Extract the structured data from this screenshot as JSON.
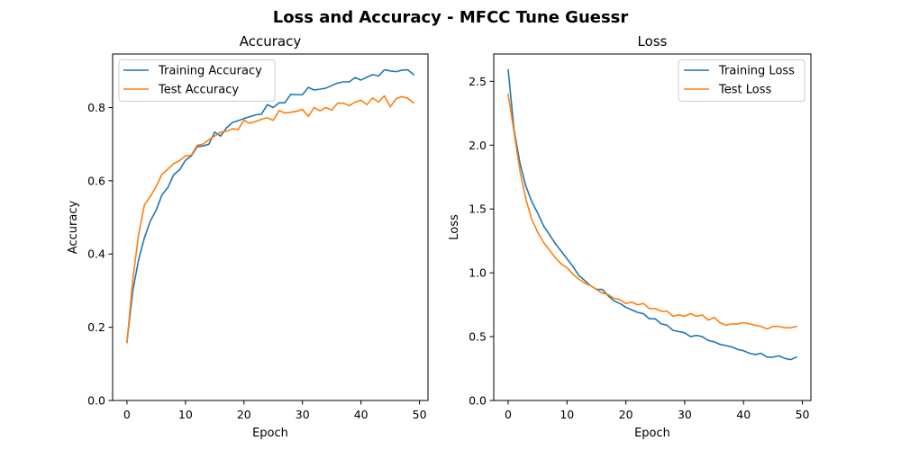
{
  "figure": {
    "title": "Loss and Accuracy - MFCC Tune Guessr",
    "colors": {
      "train": "#1f77b4",
      "test": "#ff7f0e"
    }
  },
  "chart_data": [
    {
      "id": "accuracy",
      "type": "line",
      "title": "Accuracy",
      "xlabel": "Epoch",
      "ylabel": "Accuracy",
      "xlim": [
        -2.45,
        51.45
      ],
      "ylim": [
        0.0,
        0.9462
      ],
      "xticks": [
        0,
        10,
        20,
        30,
        40,
        50
      ],
      "yticks": [
        0.0,
        0.2,
        0.4,
        0.6,
        0.8
      ],
      "ytick_labels": [
        "0.0",
        "0.2",
        "0.4",
        "0.6",
        "0.8"
      ],
      "legend_position": "upper-left",
      "grid": false,
      "x": [
        0,
        1,
        2,
        3,
        4,
        5,
        6,
        7,
        8,
        9,
        10,
        11,
        12,
        13,
        14,
        15,
        16,
        17,
        18,
        19,
        20,
        21,
        22,
        23,
        24,
        25,
        26,
        27,
        28,
        29,
        30,
        31,
        32,
        33,
        34,
        35,
        36,
        37,
        38,
        39,
        40,
        41,
        42,
        43,
        44,
        45,
        46,
        47,
        48,
        49
      ],
      "series": [
        {
          "name": "Training Accuracy",
          "color": "#1f77b4",
          "values": [
            0.16,
            0.3,
            0.385,
            0.445,
            0.49,
            0.52,
            0.562,
            0.582,
            0.617,
            0.63,
            0.656,
            0.668,
            0.693,
            0.695,
            0.7,
            0.733,
            0.722,
            0.744,
            0.759,
            0.764,
            0.77,
            0.775,
            0.78,
            0.782,
            0.808,
            0.8,
            0.813,
            0.813,
            0.836,
            0.835,
            0.835,
            0.855,
            0.848,
            0.85,
            0.853,
            0.86,
            0.867,
            0.87,
            0.87,
            0.882,
            0.875,
            0.883,
            0.89,
            0.886,
            0.903,
            0.9,
            0.898,
            0.902,
            0.903,
            0.89
          ]
        },
        {
          "name": "Test Accuracy",
          "color": "#ff7f0e",
          "values": [
            0.158,
            0.33,
            0.455,
            0.535,
            0.557,
            0.585,
            0.618,
            0.632,
            0.647,
            0.655,
            0.668,
            0.67,
            0.697,
            0.7,
            0.712,
            0.722,
            0.733,
            0.735,
            0.742,
            0.74,
            0.765,
            0.757,
            0.762,
            0.768,
            0.772,
            0.765,
            0.792,
            0.785,
            0.787,
            0.79,
            0.795,
            0.776,
            0.8,
            0.791,
            0.8,
            0.793,
            0.812,
            0.812,
            0.805,
            0.815,
            0.82,
            0.808,
            0.826,
            0.815,
            0.832,
            0.802,
            0.824,
            0.83,
            0.825,
            0.813
          ]
        }
      ]
    },
    {
      "id": "loss",
      "type": "line",
      "title": "Loss",
      "xlabel": "Epoch",
      "ylabel": "Loss",
      "xlim": [
        -2.45,
        51.45
      ],
      "ylim": [
        0.0,
        2.714
      ],
      "xticks": [
        0,
        10,
        20,
        30,
        40,
        50
      ],
      "yticks": [
        0.0,
        0.5,
        1.0,
        1.5,
        2.0,
        2.5
      ],
      "ytick_labels": [
        "0.0",
        "0.5",
        "1.0",
        "1.5",
        "2.0",
        "2.5"
      ],
      "legend_position": "upper-right",
      "grid": false,
      "x": [
        0,
        1,
        2,
        3,
        4,
        5,
        6,
        7,
        8,
        9,
        10,
        11,
        12,
        13,
        14,
        15,
        16,
        17,
        18,
        19,
        20,
        21,
        22,
        23,
        24,
        25,
        26,
        27,
        28,
        29,
        30,
        31,
        32,
        33,
        34,
        35,
        36,
        37,
        38,
        39,
        40,
        41,
        42,
        43,
        44,
        45,
        46,
        47,
        48,
        49
      ],
      "series": [
        {
          "name": "Training Loss",
          "color": "#1f77b4",
          "values": [
            2.59,
            2.12,
            1.86,
            1.68,
            1.56,
            1.47,
            1.37,
            1.3,
            1.23,
            1.17,
            1.11,
            1.05,
            0.98,
            0.94,
            0.9,
            0.87,
            0.87,
            0.82,
            0.78,
            0.76,
            0.73,
            0.71,
            0.69,
            0.68,
            0.64,
            0.64,
            0.6,
            0.59,
            0.55,
            0.54,
            0.53,
            0.5,
            0.51,
            0.5,
            0.47,
            0.46,
            0.44,
            0.43,
            0.42,
            0.4,
            0.39,
            0.37,
            0.36,
            0.37,
            0.34,
            0.34,
            0.35,
            0.33,
            0.32,
            0.34
          ]
        },
        {
          "name": "Test Loss",
          "color": "#ff7f0e",
          "values": [
            2.4,
            2.1,
            1.8,
            1.58,
            1.42,
            1.32,
            1.24,
            1.18,
            1.12,
            1.07,
            1.04,
            0.99,
            0.95,
            0.92,
            0.9,
            0.87,
            0.84,
            0.83,
            0.8,
            0.79,
            0.76,
            0.77,
            0.75,
            0.76,
            0.72,
            0.72,
            0.7,
            0.7,
            0.66,
            0.67,
            0.66,
            0.68,
            0.66,
            0.67,
            0.63,
            0.65,
            0.61,
            0.59,
            0.6,
            0.6,
            0.61,
            0.6,
            0.59,
            0.58,
            0.56,
            0.58,
            0.58,
            0.57,
            0.57,
            0.58
          ]
        }
      ]
    }
  ]
}
